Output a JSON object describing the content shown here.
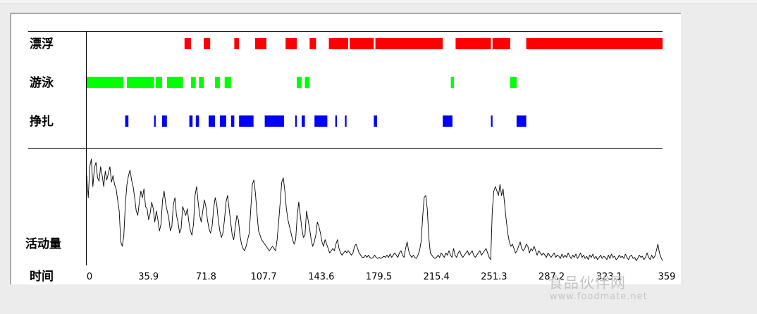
{
  "chart_data": {
    "type": "behavior-ethogram-with-activity-line",
    "rows": [
      {
        "name": "漂浮",
        "color": "#ff0000",
        "segments": [
          [
            61,
            65
          ],
          [
            73,
            77
          ],
          [
            92,
            95
          ],
          [
            105,
            112
          ],
          [
            124,
            131
          ],
          [
            139,
            143
          ],
          [
            151,
            156
          ],
          [
            156,
            163
          ],
          [
            164,
            179
          ],
          [
            180,
            222
          ],
          [
            230,
            252
          ],
          [
            253,
            264
          ],
          [
            274,
            359
          ]
        ]
      },
      {
        "name": "游泳",
        "color": "#00ff00",
        "segments": [
          [
            0,
            23
          ],
          [
            25,
            42
          ],
          [
            43,
            47
          ],
          [
            50,
            60
          ],
          [
            65,
            68
          ],
          [
            70,
            73
          ],
          [
            80,
            83
          ],
          [
            86,
            90
          ],
          [
            131,
            134
          ],
          [
            136,
            139
          ],
          [
            227,
            229
          ],
          [
            264,
            268
          ]
        ]
      },
      {
        "name": "挣扎",
        "color": "#0000ff",
        "segments": [
          [
            24,
            26
          ],
          [
            42,
            43
          ],
          [
            47,
            50
          ],
          [
            64,
            66
          ],
          [
            68,
            70
          ],
          [
            76,
            80
          ],
          [
            83,
            87
          ],
          [
            90,
            92
          ],
          [
            95,
            104
          ],
          [
            111,
            123
          ],
          [
            130,
            131
          ],
          [
            134,
            136
          ],
          [
            142,
            150
          ],
          [
            155,
            156
          ],
          [
            161,
            162
          ],
          [
            179,
            181
          ],
          [
            222,
            228
          ],
          [
            252,
            253
          ],
          [
            268,
            274
          ]
        ]
      }
    ],
    "activity": {
      "label": "活动量",
      "values": [
        80,
        60,
        88,
        95,
        70,
        87,
        92,
        78,
        75,
        88,
        80,
        70,
        84,
        76,
        82,
        88,
        74,
        80,
        72,
        68,
        58,
        48,
        20,
        16,
        26,
        55,
        72,
        80,
        85,
        76,
        70,
        60,
        48,
        44,
        56,
        66,
        60,
        68,
        52,
        50,
        40,
        46,
        56,
        50,
        38,
        48,
        40,
        30,
        36,
        58,
        66,
        55,
        48,
        42,
        30,
        34,
        54,
        60,
        44,
        38,
        28,
        32,
        52,
        48,
        44,
        50,
        38,
        30,
        26,
        36,
        62,
        70,
        56,
        44,
        38,
        48,
        58,
        52,
        40,
        32,
        28,
        34,
        50,
        60,
        54,
        40,
        30,
        24,
        28,
        40,
        56,
        62,
        50,
        38,
        26,
        22,
        34,
        44,
        40,
        26,
        18,
        14,
        12,
        16,
        22,
        28,
        50,
        72,
        76,
        64,
        46,
        30,
        26,
        22,
        20,
        18,
        16,
        14,
        12,
        14,
        16,
        14,
        12,
        22,
        38,
        56,
        74,
        78,
        66,
        50,
        40,
        34,
        28,
        22,
        18,
        22,
        44,
        56,
        44,
        32,
        24,
        26,
        48,
        40,
        32,
        22,
        16,
        20,
        26,
        38,
        34,
        28,
        20,
        16,
        22,
        18,
        14,
        10,
        12,
        14,
        12,
        18,
        22,
        14,
        10,
        8,
        10,
        12,
        10,
        12,
        10,
        8,
        10,
        16,
        18,
        14,
        10,
        8,
        6,
        6,
        8,
        6,
        8,
        6,
        5,
        6,
        8,
        6,
        5,
        6,
        5,
        6,
        7,
        6,
        8,
        6,
        9,
        6,
        8,
        10,
        8,
        6,
        10,
        12,
        8,
        6,
        14,
        20,
        12,
        8,
        6,
        8,
        6,
        5,
        8,
        12,
        20,
        42,
        60,
        62,
        50,
        24,
        10,
        8,
        6,
        5,
        6,
        8,
        6,
        10,
        8,
        6,
        10,
        8,
        12,
        8,
        6,
        14,
        8,
        6,
        10,
        12,
        8,
        6,
        8,
        10,
        12,
        8,
        10,
        12,
        8,
        6,
        8,
        10,
        12,
        8,
        10,
        12,
        14,
        10,
        6,
        4,
        48,
        66,
        70,
        66,
        62,
        72,
        62,
        68,
        54,
        40,
        28,
        20,
        16,
        18,
        14,
        10,
        12,
        16,
        20,
        14,
        12,
        14,
        18,
        16,
        10,
        14,
        12,
        16,
        12,
        8,
        12,
        10,
        8,
        10,
        8,
        6,
        10,
        8,
        6,
        8,
        10,
        6,
        8,
        7,
        5,
        9,
        6,
        8,
        6,
        10,
        7,
        5,
        8,
        6,
        9,
        5,
        7,
        10,
        6,
        8,
        5,
        7,
        4,
        8,
        6,
        9,
        5,
        7,
        4,
        6,
        8,
        5,
        7,
        6,
        4,
        8,
        5,
        9,
        6,
        7,
        4,
        5,
        8,
        6,
        7,
        5,
        9,
        6,
        4,
        7,
        8,
        5,
        6,
        3,
        5,
        8,
        6,
        7,
        4,
        6,
        10,
        6,
        4,
        8,
        5,
        7,
        12,
        18,
        10,
        6,
        3
      ],
      "ylim": [
        0,
        100
      ]
    },
    "x_label": "时间",
    "x_ticks": [
      "0",
      "35.9",
      "71.8",
      "107.7",
      "143.6",
      "179.5",
      "215.4",
      "251.3",
      "287.2",
      "323.1",
      "359"
    ],
    "xlim": [
      0,
      359
    ]
  },
  "watermark": {
    "cn": "食品伙伴网",
    "url": "www.foodmate.net"
  }
}
